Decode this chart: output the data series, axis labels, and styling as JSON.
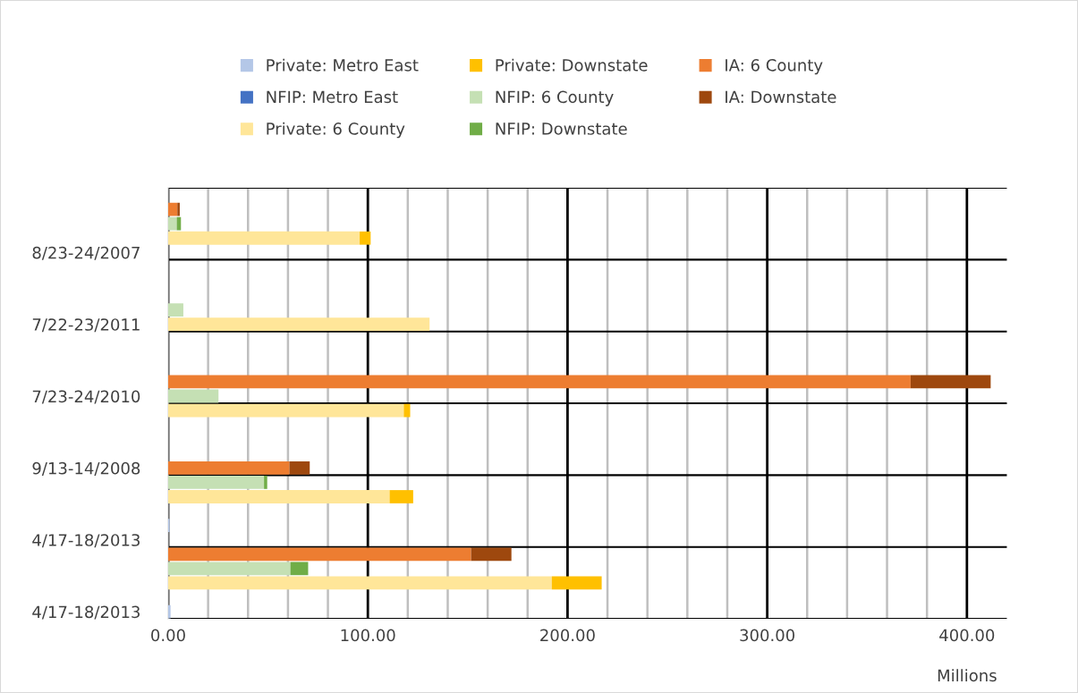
{
  "chart_data": {
    "type": "bar",
    "orientation": "horizontal",
    "stacked": true,
    "categories": [
      null,
      null,
      null,
      null,
      "8/23-24/2007",
      null,
      null,
      null,
      null,
      "7/22-23/2011",
      null,
      null,
      null,
      null,
      "7/23-24/2010",
      null,
      null,
      null,
      null,
      "9/13-14/2008",
      null,
      null,
      null,
      null,
      "4/17-18/2013",
      null,
      null,
      null,
      null,
      "4/17-18/2013"
    ],
    "series": [
      {
        "name": "Private: Metro East",
        "color": "#b4c7e7",
        "values": [
          null,
          null,
          null,
          null,
          null,
          null,
          null,
          null,
          null,
          null,
          null,
          null,
          null,
          null,
          null,
          null,
          null,
          null,
          null,
          null,
          null,
          null,
          null,
          0.7,
          null,
          null,
          null,
          null,
          null,
          1.2
        ]
      },
      {
        "name": "NFIP: Metro East",
        "color": "#4472c4",
        "values": [
          null,
          null,
          null,
          null,
          null,
          null,
          null,
          null,
          null,
          null,
          null,
          null,
          null,
          null,
          null,
          null,
          null,
          null,
          null,
          null,
          null,
          null,
          null,
          null,
          null,
          null,
          null,
          null,
          null,
          null
        ]
      },
      {
        "name": "Private: 6 County",
        "color": "#ffe699",
        "values": [
          null,
          null,
          null,
          95.9,
          null,
          null,
          null,
          null,
          null,
          130.9,
          null,
          null,
          null,
          null,
          null,
          118,
          null,
          null,
          null,
          null,
          null,
          110.9,
          null,
          null,
          null,
          null,
          null,
          192.1,
          null,
          null
        ]
      },
      {
        "name": "Private: Downstate",
        "color": "#ffc000",
        "values": [
          null,
          null,
          null,
          5.5,
          null,
          null,
          null,
          null,
          null,
          null,
          null,
          null,
          null,
          null,
          null,
          3.2,
          null,
          null,
          null,
          null,
          null,
          11.8,
          null,
          null,
          null,
          null,
          null,
          25,
          null,
          null
        ]
      },
      {
        "name": "NFIP: 6 County",
        "color": "#c5e0b4",
        "values": [
          null,
          null,
          4.3,
          null,
          null,
          null,
          null,
          null,
          7.6,
          null,
          null,
          null,
          null,
          null,
          25.2,
          null,
          null,
          null,
          null,
          null,
          48,
          null,
          null,
          null,
          null,
          null,
          61.2,
          null,
          null,
          null
        ]
      },
      {
        "name": "NFIP: Downstate",
        "color": "#70ad47",
        "values": [
          null,
          null,
          2.1,
          null,
          null,
          null,
          null,
          null,
          null,
          null,
          null,
          null,
          null,
          null,
          null,
          null,
          null,
          null,
          null,
          null,
          1.6,
          null,
          null,
          null,
          null,
          null,
          8.9,
          null,
          null,
          null
        ]
      },
      {
        "name": "IA: 6 County",
        "color": "#ed7d31",
        "values": [
          null,
          4.6,
          null,
          null,
          null,
          null,
          null,
          null,
          null,
          null,
          null,
          null,
          null,
          371.8,
          null,
          null,
          null,
          null,
          null,
          60.7,
          null,
          null,
          null,
          null,
          null,
          151.7,
          null,
          null,
          null,
          null
        ]
      },
      {
        "name": "IA: Downstate",
        "color": "#9e480e",
        "values": [
          null,
          1.2,
          null,
          null,
          null,
          null,
          null,
          null,
          null,
          null,
          null,
          null,
          null,
          40.1,
          null,
          null,
          null,
          null,
          null,
          10.2,
          null,
          null,
          null,
          null,
          null,
          20.2,
          null,
          null,
          null,
          null
        ]
      }
    ],
    "xlim": [
      0,
      420
    ],
    "xticks": [
      {
        "value": 0,
        "label": "0.00"
      },
      {
        "value": 20,
        "label": null
      },
      {
        "value": 40,
        "label": null
      },
      {
        "value": 60,
        "label": null
      },
      {
        "value": 80,
        "label": null
      },
      {
        "value": 100,
        "label": "100.00"
      },
      {
        "value": 120,
        "label": null
      },
      {
        "value": 140,
        "label": null
      },
      {
        "value": 160,
        "label": null
      },
      {
        "value": 180,
        "label": null
      },
      {
        "value": 200,
        "label": "200.00"
      },
      {
        "value": 220,
        "label": null
      },
      {
        "value": 240,
        "label": null
      },
      {
        "value": 260,
        "label": null
      },
      {
        "value": 280,
        "label": null
      },
      {
        "value": 300,
        "label": "300.00"
      },
      {
        "value": 320,
        "label": null
      },
      {
        "value": 340,
        "label": null
      },
      {
        "value": 360,
        "label": null
      },
      {
        "value": 380,
        "label": null
      },
      {
        "value": 400,
        "label": "400.00"
      }
    ],
    "xlabel": "Millions",
    "grid": true,
    "legend": "top"
  }
}
